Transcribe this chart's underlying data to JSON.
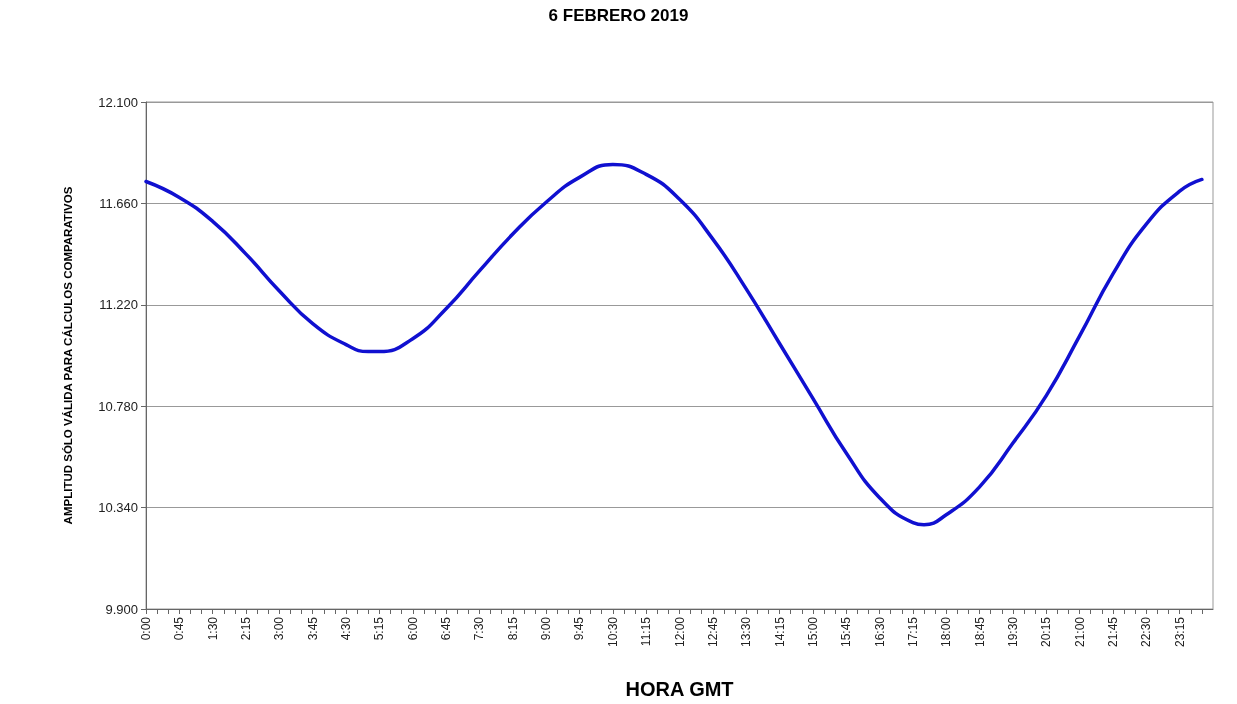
{
  "chart_data": {
    "type": "line",
    "title": "6 FEBRERO 2019",
    "xlabel": "HORA GMT",
    "ylabel": "AMPLITUD SÓLO VÁLIDA PARA CÁLCULOS COMPARATIVOS",
    "x": [
      0,
      0.75,
      1.5,
      2.25,
      3,
      3.75,
      4.5,
      5,
      5.25,
      6,
      6.75,
      7.5,
      8.25,
      9,
      9.75,
      10.5,
      11.25,
      12,
      12.75,
      13.5,
      14.25,
      15,
      15.75,
      16.5,
      17.25,
      17.5,
      18,
      18.75,
      19.5,
      20.25,
      21,
      21.75,
      22.5,
      23.25,
      23.75
    ],
    "series": [
      {
        "color": "#1010d0",
        "values": [
          11755,
          11686,
          11582,
          11440,
          11280,
          11138,
          11047,
          11017,
          11017,
          11073,
          11203,
          11367,
          11527,
          11665,
          11773,
          11829,
          11786,
          11678,
          11505,
          11289,
          11052,
          10814,
          10577,
          10383,
          10275,
          10266,
          10309,
          10430,
          10620,
          10826,
          11085,
          11354,
          11570,
          11713,
          11764
        ]
      }
    ],
    "xlim": [
      0,
      24
    ],
    "xticks": [
      {
        "value": 0,
        "label": "0:00"
      },
      {
        "value": 0.25,
        "label": null
      },
      {
        "value": 0.5,
        "label": null
      },
      {
        "value": 0.75,
        "label": "0:45"
      },
      {
        "value": 1,
        "label": null
      },
      {
        "value": 1.25,
        "label": null
      },
      {
        "value": 1.5,
        "label": "1:30"
      },
      {
        "value": 1.75,
        "label": null
      },
      {
        "value": 2,
        "label": null
      },
      {
        "value": 2.25,
        "label": "2:15"
      },
      {
        "value": 2.5,
        "label": null
      },
      {
        "value": 2.75,
        "label": null
      },
      {
        "value": 3,
        "label": "3:00"
      },
      {
        "value": 3.25,
        "label": null
      },
      {
        "value": 3.5,
        "label": null
      },
      {
        "value": 3.75,
        "label": "3:45"
      },
      {
        "value": 4,
        "label": null
      },
      {
        "value": 4.25,
        "label": null
      },
      {
        "value": 4.5,
        "label": "4:30"
      },
      {
        "value": 4.75,
        "label": null
      },
      {
        "value": 5,
        "label": null
      },
      {
        "value": 5.25,
        "label": "5:15"
      },
      {
        "value": 5.5,
        "label": null
      },
      {
        "value": 5.75,
        "label": null
      },
      {
        "value": 6,
        "label": "6:00"
      },
      {
        "value": 6.25,
        "label": null
      },
      {
        "value": 6.5,
        "label": null
      },
      {
        "value": 6.75,
        "label": "6:45"
      },
      {
        "value": 7,
        "label": null
      },
      {
        "value": 7.25,
        "label": null
      },
      {
        "value": 7.5,
        "label": "7:30"
      },
      {
        "value": 7.75,
        "label": null
      },
      {
        "value": 8,
        "label": null
      },
      {
        "value": 8.25,
        "label": "8:15"
      },
      {
        "value": 8.5,
        "label": null
      },
      {
        "value": 8.75,
        "label": null
      },
      {
        "value": 9,
        "label": "9:00"
      },
      {
        "value": 9.25,
        "label": null
      },
      {
        "value": 9.5,
        "label": null
      },
      {
        "value": 9.75,
        "label": "9:45"
      },
      {
        "value": 10,
        "label": null
      },
      {
        "value": 10.25,
        "label": null
      },
      {
        "value": 10.5,
        "label": "10:30"
      },
      {
        "value": 10.75,
        "label": null
      },
      {
        "value": 11,
        "label": null
      },
      {
        "value": 11.25,
        "label": "11:15"
      },
      {
        "value": 11.5,
        "label": null
      },
      {
        "value": 11.75,
        "label": null
      },
      {
        "value": 12,
        "label": "12:00"
      },
      {
        "value": 12.25,
        "label": null
      },
      {
        "value": 12.5,
        "label": null
      },
      {
        "value": 12.75,
        "label": "12:45"
      },
      {
        "value": 13,
        "label": null
      },
      {
        "value": 13.25,
        "label": null
      },
      {
        "value": 13.5,
        "label": "13:30"
      },
      {
        "value": 13.75,
        "label": null
      },
      {
        "value": 14,
        "label": null
      },
      {
        "value": 14.25,
        "label": "14:15"
      },
      {
        "value": 14.5,
        "label": null
      },
      {
        "value": 14.75,
        "label": null
      },
      {
        "value": 15,
        "label": "15:00"
      },
      {
        "value": 15.25,
        "label": null
      },
      {
        "value": 15.5,
        "label": null
      },
      {
        "value": 15.75,
        "label": "15:45"
      },
      {
        "value": 16,
        "label": null
      },
      {
        "value": 16.25,
        "label": null
      },
      {
        "value": 16.5,
        "label": "16:30"
      },
      {
        "value": 16.75,
        "label": null
      },
      {
        "value": 17,
        "label": null
      },
      {
        "value": 17.25,
        "label": "17:15"
      },
      {
        "value": 17.5,
        "label": null
      },
      {
        "value": 17.75,
        "label": null
      },
      {
        "value": 18,
        "label": "18:00"
      },
      {
        "value": 18.25,
        "label": null
      },
      {
        "value": 18.5,
        "label": null
      },
      {
        "value": 18.75,
        "label": "18:45"
      },
      {
        "value": 19,
        "label": null
      },
      {
        "value": 19.25,
        "label": null
      },
      {
        "value": 19.5,
        "label": "19:30"
      },
      {
        "value": 19.75,
        "label": null
      },
      {
        "value": 20,
        "label": null
      },
      {
        "value": 20.25,
        "label": "20:15"
      },
      {
        "value": 20.5,
        "label": null
      },
      {
        "value": 20.75,
        "label": null
      },
      {
        "value": 21,
        "label": "21:00"
      },
      {
        "value": 21.25,
        "label": null
      },
      {
        "value": 21.5,
        "label": null
      },
      {
        "value": 21.75,
        "label": "21:45"
      },
      {
        "value": 22,
        "label": null
      },
      {
        "value": 22.25,
        "label": null
      },
      {
        "value": 22.5,
        "label": "22:30"
      },
      {
        "value": 22.75,
        "label": null
      },
      {
        "value": 23,
        "label": null
      },
      {
        "value": 23.25,
        "label": "23:15"
      },
      {
        "value": 23.5,
        "label": null
      },
      {
        "value": 23.75,
        "label": null
      }
    ],
    "ylim": [
      9900,
      12100
    ],
    "yticks": [
      {
        "value": 9900,
        "label": "9.900"
      },
      {
        "value": 10340,
        "label": "10.340"
      },
      {
        "value": 10780,
        "label": "10.780"
      },
      {
        "value": 11220,
        "label": "11.220"
      },
      {
        "value": 11660,
        "label": "11.660"
      },
      {
        "value": 12100,
        "label": "12.100"
      }
    ],
    "grid": "y",
    "marker": "none",
    "line_style": "solid"
  }
}
